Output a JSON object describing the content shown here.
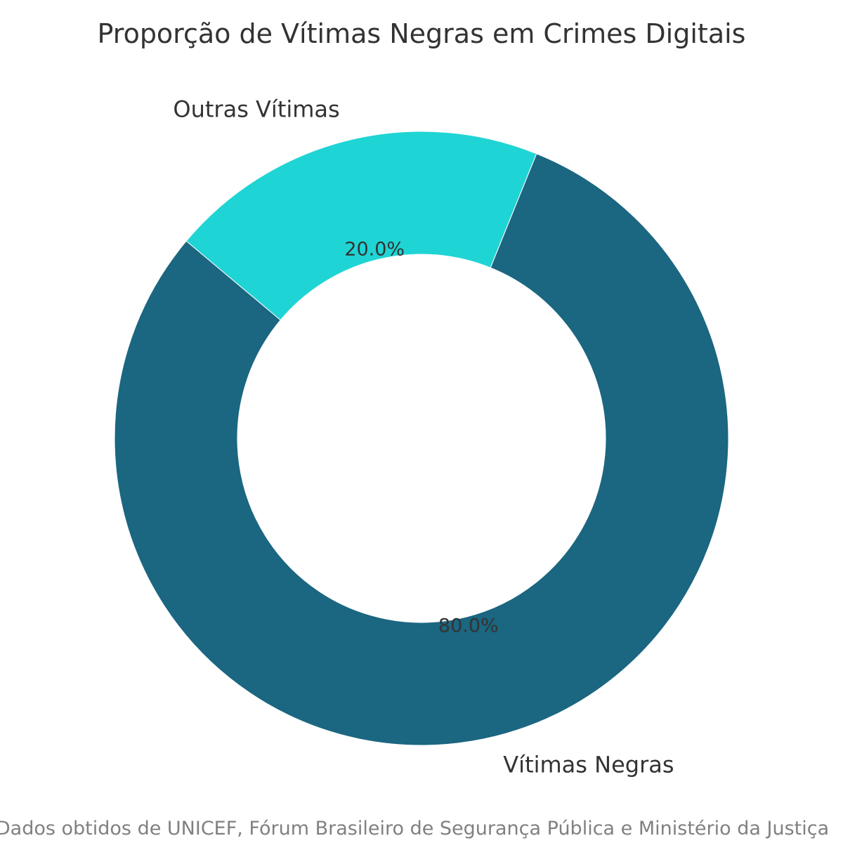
{
  "chart_data": {
    "type": "pie",
    "style": "donut",
    "title": "Proporção de Vítimas Negras em Crimes Digitais",
    "categories": [
      "Vítimas Negras",
      "Outras Vítimas"
    ],
    "values": [
      80,
      20
    ],
    "percent_labels": [
      "80.0%",
      "20.0%"
    ],
    "colors": [
      "#1b6680",
      "#1fd4d4"
    ],
    "start_angle_deg": 140,
    "direction": "counterclockwise",
    "legend": "none"
  },
  "footer": {
    "source": "Dados obtidos de UNICEF, Fórum Brasileiro de Segurança Pública e Ministério da Justiça"
  }
}
